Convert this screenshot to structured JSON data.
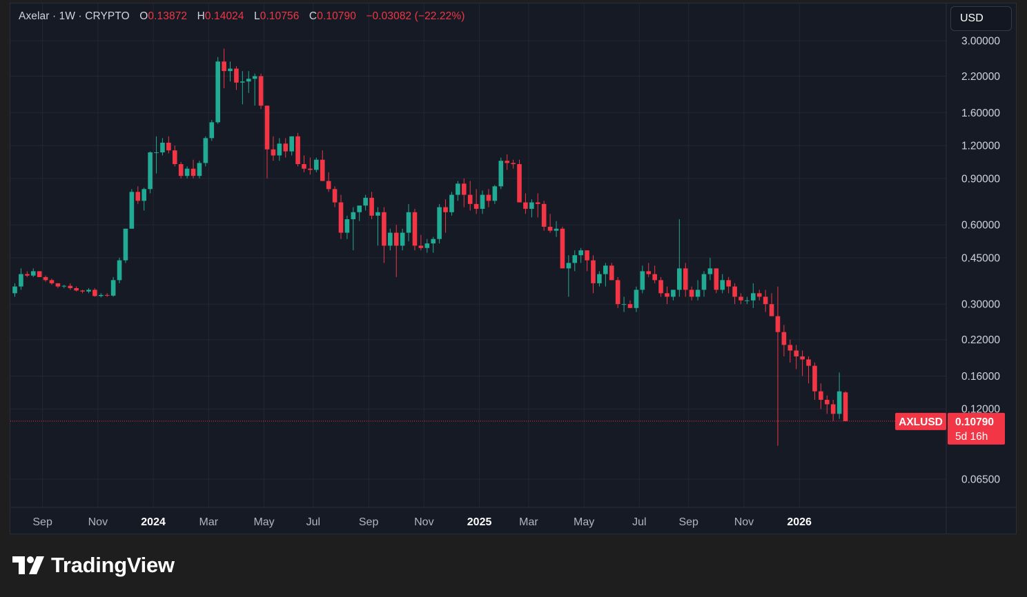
{
  "legend": {
    "symbol": "Axelar",
    "interval": "1W",
    "exchange": "CRYPTO",
    "open_label": "O",
    "open": "0.13872",
    "high_label": "H",
    "high": "0.14024",
    "low_label": "L",
    "low": "0.10756",
    "close_label": "C",
    "close": "0.10790",
    "change": "−0.03082 (−22.22%)"
  },
  "currency_button": "USD",
  "price_label": {
    "ticker": "AXLUSD",
    "price": "0.10790",
    "countdown": "5d 16h"
  },
  "logo": {
    "text": "TradingView",
    "icon": "tradingview-logo-icon"
  },
  "colors": {
    "up": "#22ab94",
    "down": "#f23645",
    "background": "#161a25",
    "grid": "#232733"
  },
  "chart_data": {
    "type": "candlestick",
    "symbol": "AXLUSD",
    "interval": "1W",
    "scale": "log",
    "grid": true,
    "y_ticks": [
      "3.00000",
      "2.20000",
      "1.60000",
      "1.20000",
      "0.90000",
      "0.60000",
      "0.45000",
      "0.30000",
      "0.22000",
      "0.16000",
      "0.12000",
      "0.06500"
    ],
    "y_tick_values": [
      3.0,
      2.2,
      1.6,
      1.2,
      0.9,
      0.6,
      0.45,
      0.3,
      0.22,
      0.16,
      0.12,
      0.065
    ],
    "x_ticks": [
      {
        "label": "Sep",
        "t": 4.5,
        "year": false
      },
      {
        "label": "Nov",
        "t": 13.5,
        "year": false
      },
      {
        "label": "2024",
        "t": 22.5,
        "year": true
      },
      {
        "label": "Mar",
        "t": 31.5,
        "year": false
      },
      {
        "label": "May",
        "t": 40.5,
        "year": false
      },
      {
        "label": "Jul",
        "t": 48.5,
        "year": false
      },
      {
        "label": "Sep",
        "t": 57.5,
        "year": false
      },
      {
        "label": "Nov",
        "t": 66.5,
        "year": false
      },
      {
        "label": "2025",
        "t": 75.5,
        "year": true
      },
      {
        "label": "Mar",
        "t": 83.5,
        "year": false
      },
      {
        "label": "May",
        "t": 92.5,
        "year": false
      },
      {
        "label": "Jul",
        "t": 101.5,
        "year": false
      },
      {
        "label": "Sep",
        "t": 109.5,
        "year": false
      },
      {
        "label": "Nov",
        "t": 118.5,
        "year": false
      },
      {
        "label": "2026",
        "t": 127.5,
        "year": true
      }
    ],
    "ohlc": [
      [
        0.33,
        0.36,
        0.32,
        0.35
      ],
      [
        0.35,
        0.41,
        0.34,
        0.39
      ],
      [
        0.39,
        0.4,
        0.38,
        0.385
      ],
      [
        0.385,
        0.41,
        0.38,
        0.4
      ],
      [
        0.4,
        0.4,
        0.38,
        0.38
      ],
      [
        0.38,
        0.385,
        0.365,
        0.37
      ],
      [
        0.37,
        0.375,
        0.355,
        0.36
      ],
      [
        0.36,
        0.36,
        0.345,
        0.35
      ],
      [
        0.35,
        0.355,
        0.345,
        0.352
      ],
      [
        0.352,
        0.36,
        0.34,
        0.345
      ],
      [
        0.345,
        0.35,
        0.335,
        0.338
      ],
      [
        0.338,
        0.34,
        0.33,
        0.335
      ],
      [
        0.335,
        0.345,
        0.33,
        0.34
      ],
      [
        0.34,
        0.345,
        0.32,
        0.322
      ],
      [
        0.322,
        0.33,
        0.318,
        0.325
      ],
      [
        0.325,
        0.33,
        0.32,
        0.323
      ],
      [
        0.323,
        0.38,
        0.32,
        0.37
      ],
      [
        0.37,
        0.45,
        0.36,
        0.44
      ],
      [
        0.44,
        0.58,
        0.43,
        0.58
      ],
      [
        0.58,
        0.82,
        0.58,
        0.8
      ],
      [
        0.8,
        0.84,
        0.72,
        0.74
      ],
      [
        0.74,
        0.83,
        0.68,
        0.82
      ],
      [
        0.82,
        1.14,
        0.79,
        1.13
      ],
      [
        1.13,
        1.3,
        0.94,
        1.13
      ],
      [
        1.13,
        1.28,
        1.1,
        1.23
      ],
      [
        1.23,
        1.3,
        1.12,
        1.15
      ],
      [
        1.15,
        1.2,
        1.0,
        1.02
      ],
      [
        1.02,
        1.04,
        0.9,
        0.92
      ],
      [
        0.92,
        1.0,
        0.9,
        0.98
      ],
      [
        0.98,
        1.06,
        0.9,
        0.92
      ],
      [
        0.92,
        1.05,
        0.9,
        1.03
      ],
      [
        1.03,
        1.3,
        1.0,
        1.28
      ],
      [
        1.28,
        1.5,
        1.25,
        1.47
      ],
      [
        1.47,
        2.6,
        1.45,
        2.5
      ],
      [
        2.5,
        2.8,
        1.98,
        2.3
      ],
      [
        2.3,
        2.5,
        2.1,
        2.35
      ],
      [
        2.35,
        2.4,
        1.95,
        2.08
      ],
      [
        2.08,
        2.3,
        1.72,
        2.1
      ],
      [
        2.1,
        2.3,
        1.9,
        2.15
      ],
      [
        2.15,
        2.25,
        1.7,
        2.2
      ],
      [
        2.2,
        2.25,
        1.65,
        1.7
      ],
      [
        1.7,
        1.7,
        0.9,
        1.16
      ],
      [
        1.16,
        1.3,
        1.05,
        1.1
      ],
      [
        1.1,
        1.28,
        1.05,
        1.22
      ],
      [
        1.22,
        1.28,
        1.08,
        1.14
      ],
      [
        1.14,
        1.3,
        1.1,
        1.3
      ],
      [
        1.3,
        1.34,
        1.0,
        1.02
      ],
      [
        1.02,
        1.1,
        0.95,
        0.98
      ],
      [
        0.98,
        1.08,
        0.93,
        0.97
      ],
      [
        0.97,
        1.08,
        0.95,
        1.06
      ],
      [
        1.06,
        1.15,
        0.9,
        0.88
      ],
      [
        0.88,
        0.95,
        0.8,
        0.82
      ],
      [
        0.82,
        0.84,
        0.7,
        0.73
      ],
      [
        0.73,
        0.78,
        0.53,
        0.56
      ],
      [
        0.56,
        0.65,
        0.53,
        0.63
      ],
      [
        0.63,
        0.7,
        0.48,
        0.67
      ],
      [
        0.67,
        0.7,
        0.62,
        0.71
      ],
      [
        0.71,
        0.78,
        0.68,
        0.76
      ],
      [
        0.76,
        0.8,
        0.63,
        0.65
      ],
      [
        0.65,
        0.7,
        0.5,
        0.67
      ],
      [
        0.67,
        0.7,
        0.43,
        0.5
      ],
      [
        0.5,
        0.58,
        0.48,
        0.56
      ],
      [
        0.56,
        0.6,
        0.38,
        0.5
      ],
      [
        0.5,
        0.58,
        0.48,
        0.56
      ],
      [
        0.56,
        0.72,
        0.52,
        0.67
      ],
      [
        0.67,
        0.69,
        0.48,
        0.5
      ],
      [
        0.5,
        0.55,
        0.48,
        0.49
      ],
      [
        0.49,
        0.53,
        0.47,
        0.51
      ],
      [
        0.51,
        0.54,
        0.47,
        0.53
      ],
      [
        0.53,
        0.72,
        0.51,
        0.7
      ],
      [
        0.7,
        0.75,
        0.56,
        0.67
      ],
      [
        0.67,
        0.8,
        0.65,
        0.78
      ],
      [
        0.78,
        0.88,
        0.74,
        0.86
      ],
      [
        0.86,
        0.9,
        0.7,
        0.78
      ],
      [
        0.78,
        0.88,
        0.68,
        0.72
      ],
      [
        0.72,
        0.82,
        0.66,
        0.69
      ],
      [
        0.69,
        0.81,
        0.66,
        0.78
      ],
      [
        0.78,
        0.82,
        0.7,
        0.74
      ],
      [
        0.74,
        0.85,
        0.72,
        0.84
      ],
      [
        0.84,
        1.08,
        0.82,
        1.05
      ],
      [
        1.05,
        1.11,
        0.97,
        1.03
      ],
      [
        1.03,
        1.06,
        0.98,
        1.02
      ],
      [
        1.02,
        1.06,
        0.75,
        0.73
      ],
      [
        0.73,
        0.79,
        0.66,
        0.69
      ],
      [
        0.69,
        0.75,
        0.64,
        0.73
      ],
      [
        0.73,
        0.79,
        0.64,
        0.72
      ],
      [
        0.72,
        0.74,
        0.57,
        0.59
      ],
      [
        0.59,
        0.66,
        0.56,
        0.57
      ],
      [
        0.57,
        0.62,
        0.54,
        0.58
      ],
      [
        0.58,
        0.59,
        0.42,
        0.41
      ],
      [
        0.41,
        0.46,
        0.32,
        0.43
      ],
      [
        0.43,
        0.48,
        0.4,
        0.46
      ],
      [
        0.46,
        0.49,
        0.43,
        0.48
      ],
      [
        0.48,
        0.48,
        0.4,
        0.44
      ],
      [
        0.44,
        0.46,
        0.33,
        0.36
      ],
      [
        0.36,
        0.4,
        0.35,
        0.39
      ],
      [
        0.39,
        0.43,
        0.35,
        0.42
      ],
      [
        0.42,
        0.43,
        0.37,
        0.37
      ],
      [
        0.37,
        0.38,
        0.29,
        0.3
      ],
      [
        0.3,
        0.32,
        0.28,
        0.3
      ],
      [
        0.3,
        0.31,
        0.29,
        0.29
      ],
      [
        0.29,
        0.35,
        0.28,
        0.34
      ],
      [
        0.34,
        0.42,
        0.33,
        0.4
      ],
      [
        0.4,
        0.43,
        0.38,
        0.39
      ],
      [
        0.39,
        0.42,
        0.36,
        0.37
      ],
      [
        0.37,
        0.38,
        0.32,
        0.33
      ],
      [
        0.33,
        0.35,
        0.3,
        0.32
      ],
      [
        0.32,
        0.34,
        0.31,
        0.34
      ],
      [
        0.34,
        0.63,
        0.32,
        0.41
      ],
      [
        0.41,
        0.43,
        0.32,
        0.34
      ],
      [
        0.34,
        0.35,
        0.31,
        0.32
      ],
      [
        0.32,
        0.37,
        0.31,
        0.34
      ],
      [
        0.34,
        0.4,
        0.32,
        0.39
      ],
      [
        0.39,
        0.45,
        0.37,
        0.41
      ],
      [
        0.41,
        0.41,
        0.33,
        0.34
      ],
      [
        0.34,
        0.39,
        0.33,
        0.37
      ],
      [
        0.37,
        0.38,
        0.33,
        0.35
      ],
      [
        0.35,
        0.36,
        0.3,
        0.32
      ],
      [
        0.32,
        0.33,
        0.3,
        0.31
      ],
      [
        0.31,
        0.32,
        0.3,
        0.31
      ],
      [
        0.31,
        0.36,
        0.29,
        0.33
      ],
      [
        0.33,
        0.34,
        0.31,
        0.32
      ],
      [
        0.32,
        0.34,
        0.28,
        0.3
      ],
      [
        0.3,
        0.33,
        0.29,
        0.27
      ],
      [
        0.27,
        0.35,
        0.087,
        0.235
      ],
      [
        0.235,
        0.25,
        0.19,
        0.21
      ],
      [
        0.21,
        0.22,
        0.18,
        0.2
      ],
      [
        0.2,
        0.21,
        0.17,
        0.19
      ],
      [
        0.19,
        0.2,
        0.16,
        0.185
      ],
      [
        0.185,
        0.19,
        0.15,
        0.175
      ],
      [
        0.175,
        0.18,
        0.13,
        0.14
      ],
      [
        0.14,
        0.15,
        0.12,
        0.13
      ],
      [
        0.13,
        0.135,
        0.115,
        0.125
      ],
      [
        0.125,
        0.13,
        0.108,
        0.115
      ],
      [
        0.115,
        0.165,
        0.11,
        0.14
      ],
      [
        0.13872,
        0.14024,
        0.10756,
        0.1079
      ]
    ]
  }
}
